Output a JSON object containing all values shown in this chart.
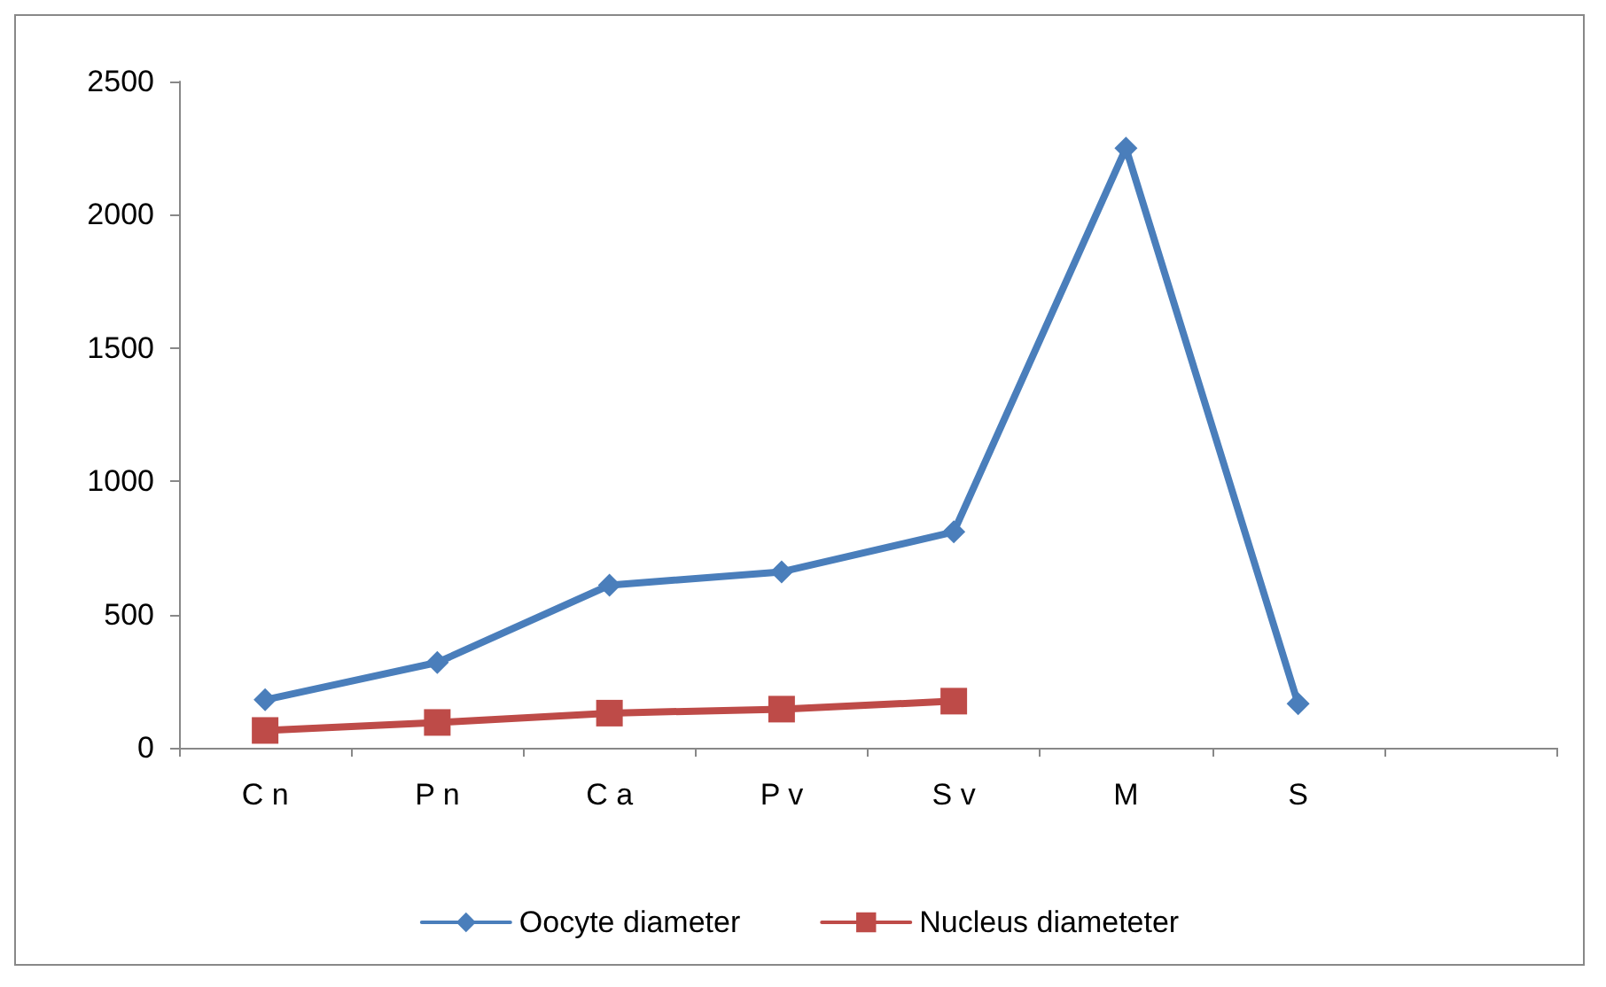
{
  "chart_data": {
    "type": "line",
    "categories": [
      "C n",
      "P n",
      "C a",
      "P v",
      "S v",
      "M",
      "S",
      null
    ],
    "series": [
      {
        "name": "Oocyte diameter",
        "color": "#4a7ebb",
        "marker": "diamond",
        "values": [
          180,
          320,
          610,
          660,
          810,
          2250,
          165,
          null
        ]
      },
      {
        "name": "Nucleus diameteter",
        "color": "#be4b48",
        "marker": "square",
        "values": [
          65,
          95,
          130,
          145,
          175,
          null,
          null,
          null
        ]
      }
    ],
    "ylim": [
      0,
      2500
    ],
    "yticks": [
      0,
      500,
      1000,
      1500,
      2000,
      2500
    ],
    "grid": false,
    "legend": "bottom",
    "line_style": "solid"
  }
}
